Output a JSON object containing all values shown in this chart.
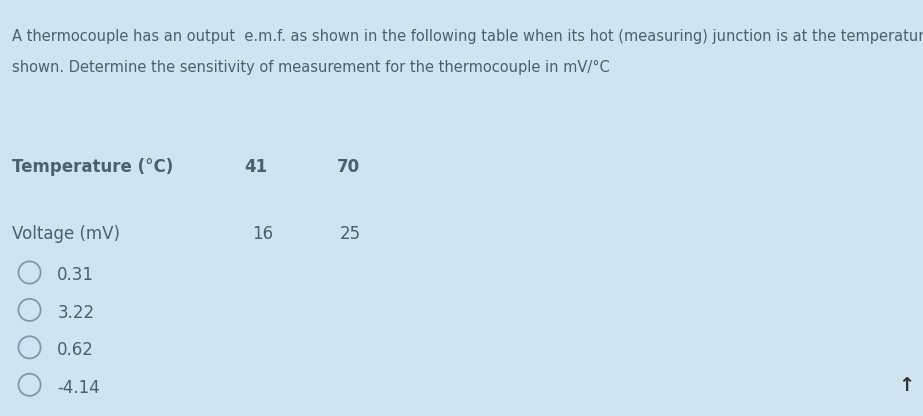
{
  "bg_color": "#cfe4f0",
  "text_color": "#4a6070",
  "title_text_line1": "A thermocouple has an output  e.m.f. as shown in the following table when its hot (measuring) junction is at the temperatures",
  "title_text_line2": "shown. Determine the sensitivity of measurement for the thermocouple in mV/°C",
  "row_label_temp": "Temperature (°C)",
  "row_label_volt": "Voltage (mV)",
  "temp_values": [
    "41",
    "70"
  ],
  "volt_values": [
    "16",
    "25"
  ],
  "options": [
    "0.31",
    "3.22",
    "0.62",
    "-4.14"
  ],
  "title_fontsize": 10.5,
  "table_label_fontsize": 12,
  "table_value_fontsize": 12,
  "option_fontsize": 12,
  "circle_color": "#7a9ab0",
  "arrow_color": "#333333",
  "scrollbar_color": "#c0d8e8"
}
